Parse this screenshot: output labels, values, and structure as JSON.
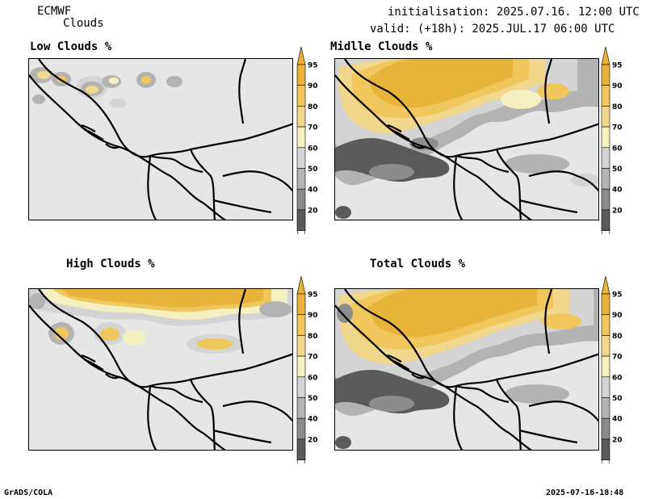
{
  "header": {
    "model": "ECMWF",
    "product": "Clouds",
    "init": "initialisation: 2025.07.16. 12:00 UTC",
    "valid": "valid: (+18h): 2025.JUL.17 06:00 UTC"
  },
  "panels": [
    {
      "title": "Low Clouds %"
    },
    {
      "title": "Midlle Clouds %"
    },
    {
      "title": "High Clouds %"
    },
    {
      "title": "Total Clouds %"
    }
  ],
  "colorbar": {
    "labels": [
      "95",
      "90",
      "80",
      "70",
      "60",
      "50",
      "40",
      "20"
    ],
    "colors": {
      "95": "#e8b33a",
      "90": "#efc75c",
      "80": "#f2d88c",
      "70": "#f5f0c2",
      "60": "#d4d4d4",
      "50": "#b3b3b3",
      "40": "#8c8c8c",
      "20": "#5a5a5a",
      "bg": "#e6e6e6"
    }
  },
  "footer": {
    "left": "GrADS/COLA",
    "right": "2025-07-16-18:48"
  }
}
